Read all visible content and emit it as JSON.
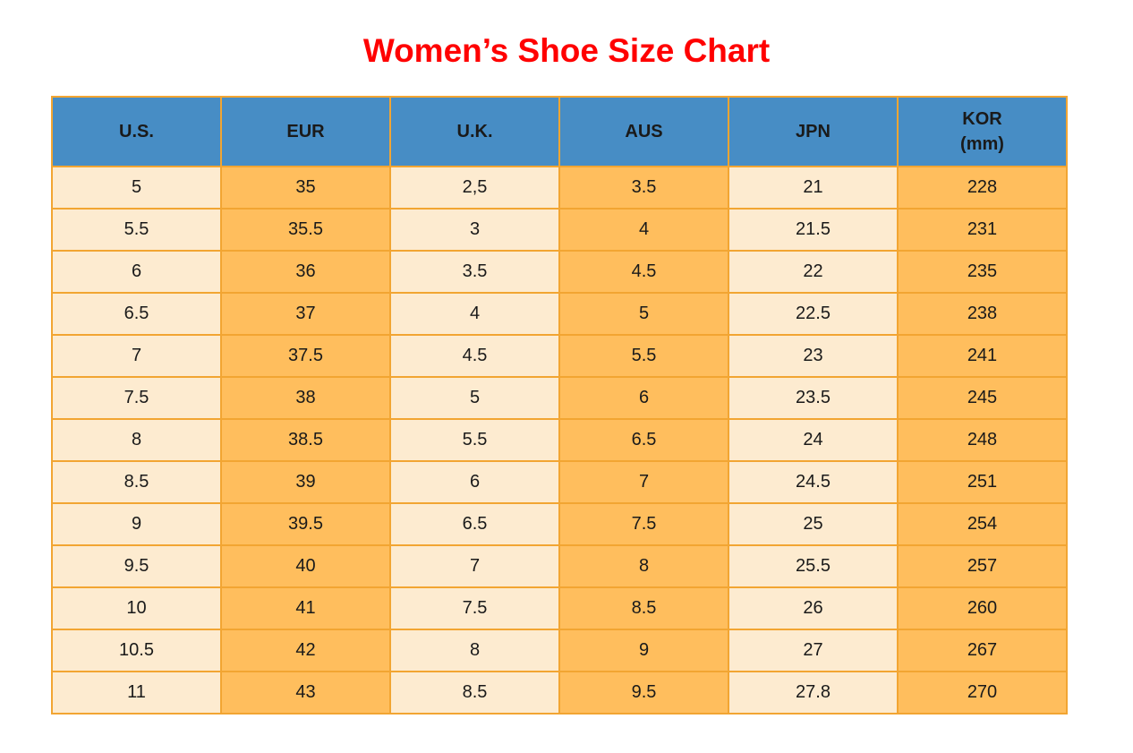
{
  "title": "Women’s Shoe Size Chart",
  "colors": {
    "title": "#ff0000",
    "header_bg": "#478dc5",
    "col_light": "#fdebd0",
    "col_dark": "#ffbe5d",
    "border": "#f2a532",
    "text": "#1a1a1a"
  },
  "chart_data": {
    "type": "table",
    "title": "Women’s Shoe Size Chart",
    "columns": [
      "U.S.",
      "EUR",
      "U.K.",
      "AUS",
      "JPN",
      "KOR\n(mm)"
    ],
    "column_keys": [
      "us",
      "eur",
      "uk",
      "aus",
      "jpn",
      "kor-mm"
    ],
    "rows": [
      [
        "5",
        "35",
        "2,5",
        "3.5",
        "21",
        "228"
      ],
      [
        "5.5",
        "35.5",
        "3",
        "4",
        "21.5",
        "231"
      ],
      [
        "6",
        "36",
        "3.5",
        "4.5",
        "22",
        "235"
      ],
      [
        "6.5",
        "37",
        "4",
        "5",
        "22.5",
        "238"
      ],
      [
        "7",
        "37.5",
        "4.5",
        "5.5",
        "23",
        "241"
      ],
      [
        "7.5",
        "38",
        "5",
        "6",
        "23.5",
        "245"
      ],
      [
        "8",
        "38.5",
        "5.5",
        "6.5",
        "24",
        "248"
      ],
      [
        "8.5",
        "39",
        "6",
        "7",
        "24.5",
        "251"
      ],
      [
        "9",
        "39.5",
        "6.5",
        "7.5",
        "25",
        "254"
      ],
      [
        "9.5",
        "40",
        "7",
        "8",
        "25.5",
        "257"
      ],
      [
        "10",
        "41",
        "7.5",
        "8.5",
        "26",
        "260"
      ],
      [
        "10.5",
        "42",
        "8",
        "9",
        "27",
        "267"
      ],
      [
        "11",
        "43",
        "8.5",
        "9.5",
        "27.8",
        "270"
      ]
    ],
    "layout": {
      "header_text_color": "black",
      "column_fill_pattern": "alternating light/dark by column",
      "grid": "on"
    }
  }
}
